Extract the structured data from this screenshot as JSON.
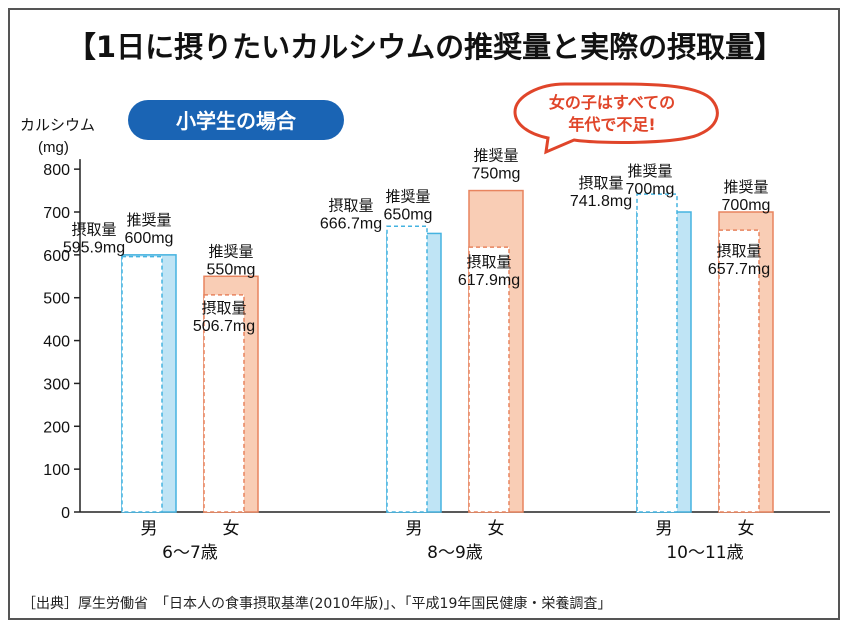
{
  "chart_data": {
    "type": "bar",
    "title": "【1日に摂りたいカルシウムの推奨量と実際の摂取量】",
    "ylabel": "カルシウム",
    "yunit": "(mg)",
    "ylim": [
      0,
      800
    ],
    "yticks": [
      "0",
      "100",
      "200",
      "300",
      "400",
      "500",
      "600",
      "700",
      "800"
    ],
    "badge": "小学生の場合",
    "callout": [
      "女の子はすべての",
      "年代で不足!"
    ],
    "recommended_label": "推奨量",
    "intake_label": "摂取量",
    "groups": [
      {
        "label": "6〜7歳",
        "bars": [
          {
            "sex": "男",
            "recommended": 600,
            "recommended_text": "600mg",
            "intake": 595.9,
            "intake_text": "595.9mg"
          },
          {
            "sex": "女",
            "recommended": 550,
            "recommended_text": "550mg",
            "intake": 506.7,
            "intake_text": "506.7mg"
          }
        ]
      },
      {
        "label": "8〜9歳",
        "bars": [
          {
            "sex": "男",
            "recommended": 650,
            "recommended_text": "650mg",
            "intake": 666.7,
            "intake_text": "666.7mg"
          },
          {
            "sex": "女",
            "recommended": 750,
            "recommended_text": "750mg",
            "intake": 617.9,
            "intake_text": "617.9mg"
          }
        ]
      },
      {
        "label": "10〜11歳",
        "bars": [
          {
            "sex": "男",
            "recommended": 700,
            "recommended_text": "700mg",
            "intake": 741.8,
            "intake_text": "741.8mg"
          },
          {
            "sex": "女",
            "recommended": 700,
            "recommended_text": "700mg",
            "intake": 657.7,
            "intake_text": "657.7mg"
          }
        ]
      }
    ],
    "source": "［出典］厚生労働省　「日本人の食事摂取基準(2010年版)」、「平成19年国民健康・栄養調査」",
    "colors": {
      "male_fill": "#bfe4f5",
      "male_stroke": "#45b3e0",
      "female_fill": "#f9cdb5",
      "female_stroke": "#e8845f",
      "badge": "#1a64b4",
      "callout": "#e0452a"
    }
  }
}
